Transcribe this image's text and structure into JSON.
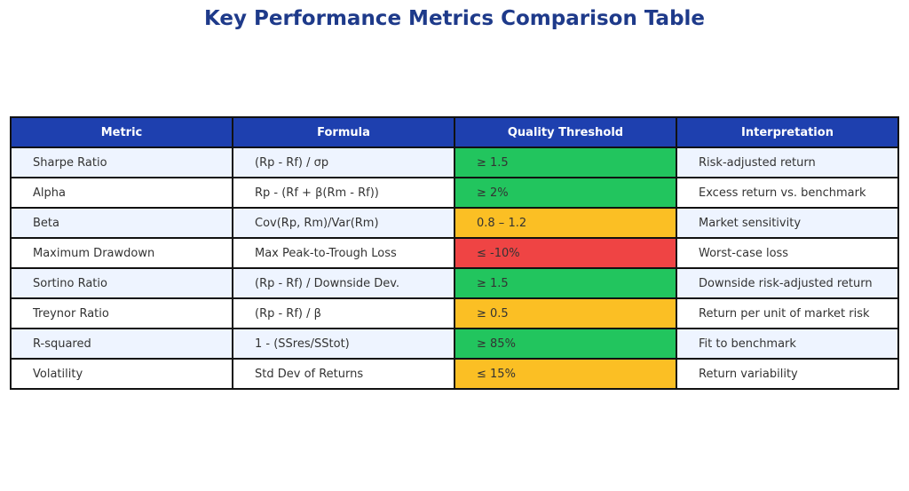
{
  "title": "Key Performance Metrics Comparison Table",
  "colors": {
    "header_bg": "#1e40af",
    "title": "#1e3a8a",
    "row_alt": "#eef4ff",
    "green": "#22c55e",
    "amber": "#fbbf24",
    "red": "#ef4444"
  },
  "chart_data": {
    "type": "table",
    "title": "Key Performance Metrics Comparison Table",
    "columns": [
      "Metric",
      "Formula",
      "Quality Threshold",
      "Interpretation"
    ],
    "rows": [
      {
        "metric": "Sharpe Ratio",
        "formula": "(Rp - Rf) / σp",
        "threshold": "≥ 1.5",
        "threshold_color": "#22c55e",
        "interpretation": "Risk-adjusted return"
      },
      {
        "metric": "Alpha",
        "formula": "Rp - (Rf + β(Rm - Rf))",
        "threshold": "≥ 2%",
        "threshold_color": "#22c55e",
        "interpretation": "Excess return vs. benchmark"
      },
      {
        "metric": "Beta",
        "formula": "Cov(Rp, Rm)/Var(Rm)",
        "threshold": "0.8 – 1.2",
        "threshold_color": "#fbbf24",
        "interpretation": "Market sensitivity"
      },
      {
        "metric": "Maximum Drawdown",
        "formula": "Max Peak-to-Trough Loss",
        "threshold": "≤ -10%",
        "threshold_color": "#ef4444",
        "interpretation": "Worst-case loss"
      },
      {
        "metric": "Sortino Ratio",
        "formula": "(Rp - Rf) / Downside Dev.",
        "threshold": "≥ 1.5",
        "threshold_color": "#22c55e",
        "interpretation": "Downside risk-adjusted return"
      },
      {
        "metric": "Treynor Ratio",
        "formula": "(Rp - Rf) / β",
        "threshold": "≥ 0.5",
        "threshold_color": "#fbbf24",
        "interpretation": "Return per unit of market risk"
      },
      {
        "metric": "R-squared",
        "formula": "1 - (SSres/SStot)",
        "threshold": "≥ 85%",
        "threshold_color": "#22c55e",
        "interpretation": "Fit to benchmark"
      },
      {
        "metric": "Volatility",
        "formula": "Std Dev of Returns",
        "threshold": "≤ 15%",
        "threshold_color": "#fbbf24",
        "interpretation": "Return variability"
      }
    ]
  }
}
